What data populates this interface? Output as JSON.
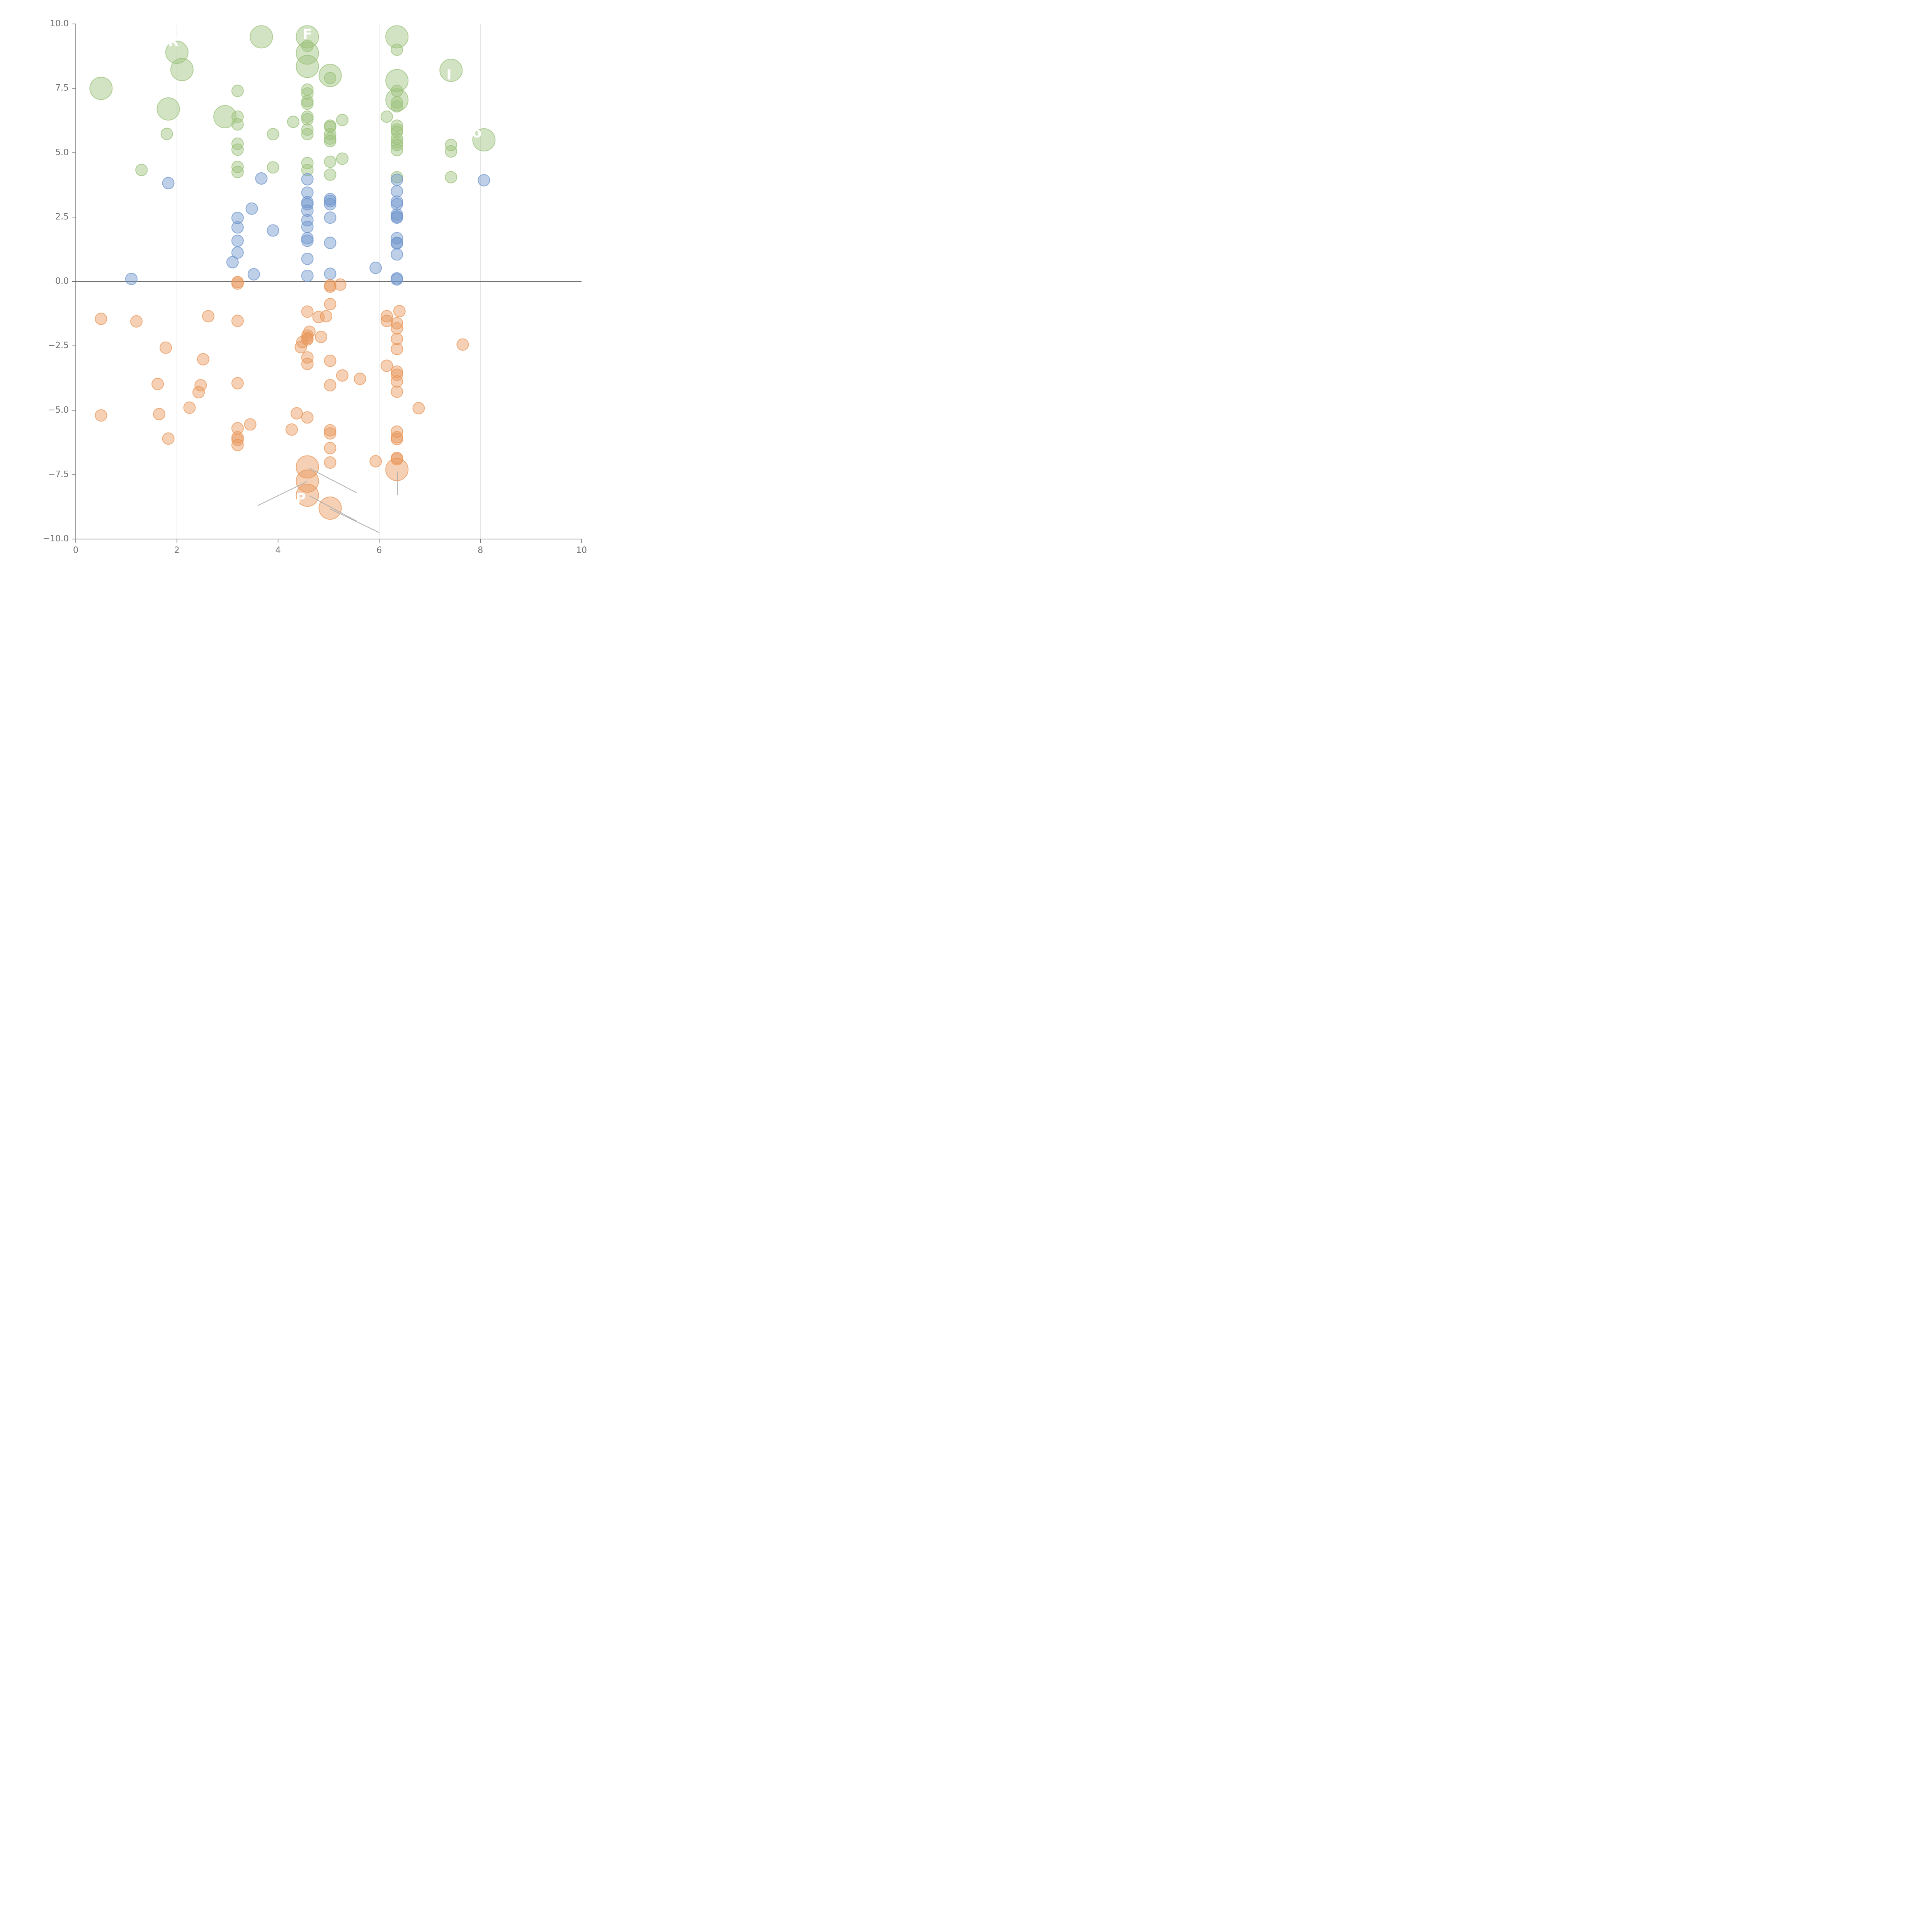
{
  "chart_data": {
    "type": "scatter",
    "title": "",
    "xlabel": "",
    "ylabel": "",
    "xlim": [
      0,
      10
    ],
    "ylim": [
      -10,
      10
    ],
    "grid": {
      "x": true,
      "y": false
    },
    "xticks": [
      "0",
      "2",
      "4",
      "6",
      "8",
      "10"
    ],
    "yticks": [
      "10.0",
      "7.5",
      "5.0",
      "2.5",
      "0.0",
      "−2.5",
      "−5.0",
      "−7.5",
      "−10.0"
    ],
    "xtick_values": [
      0,
      2,
      4,
      6,
      8,
      10
    ],
    "ytick_values": [
      10,
      7.5,
      5,
      2.5,
      0,
      -2.5,
      -5,
      -7.5,
      -10
    ],
    "zero_line": 0,
    "colors": {
      "green": "#9bc27a",
      "blue": "#6f95cc",
      "orange": "#e8975a",
      "axis": "#707070",
      "grid": "#d9d9d9",
      "leader": "#b0b0b0"
    },
    "series": [
      {
        "color": "#9bc27a",
        "points": [
          {
            "x": 0.5,
            "y": 7.5,
            "size": "large"
          },
          {
            "x": 1.3,
            "y": 4.33,
            "size": "small"
          },
          {
            "x": 1.8,
            "y": 5.73,
            "size": "small"
          },
          {
            "x": 1.83,
            "y": 6.7,
            "size": "large"
          },
          {
            "x": 2.0,
            "y": 8.9,
            "size": "large"
          },
          {
            "x": 2.1,
            "y": 8.23,
            "size": "large"
          },
          {
            "x": 2.95,
            "y": 6.4,
            "size": "large"
          },
          {
            "x": 3.2,
            "y": 7.4,
            "size": "small"
          },
          {
            "x": 3.2,
            "y": 6.4,
            "size": "small"
          },
          {
            "x": 3.2,
            "y": 6.1,
            "size": "small"
          },
          {
            "x": 3.2,
            "y": 5.35,
            "size": "small"
          },
          {
            "x": 3.2,
            "y": 5.12,
            "size": "small"
          },
          {
            "x": 3.2,
            "y": 4.45,
            "size": "small"
          },
          {
            "x": 3.2,
            "y": 4.25,
            "size": "small"
          },
          {
            "x": 3.67,
            "y": 9.5,
            "size": "large"
          },
          {
            "x": 3.9,
            "y": 5.72,
            "size": "small"
          },
          {
            "x": 3.9,
            "y": 4.43,
            "size": "small"
          },
          {
            "x": 4.3,
            "y": 6.2,
            "size": "small"
          },
          {
            "x": 4.58,
            "y": 9.5,
            "size": "large"
          },
          {
            "x": 4.58,
            "y": 9.15,
            "size": "small"
          },
          {
            "x": 4.58,
            "y": 8.87,
            "size": "large"
          },
          {
            "x": 4.58,
            "y": 8.35,
            "size": "large"
          },
          {
            "x": 4.58,
            "y": 7.45,
            "size": "small"
          },
          {
            "x": 4.58,
            "y": 7.3,
            "size": "small"
          },
          {
            "x": 4.58,
            "y": 7.0,
            "size": "small"
          },
          {
            "x": 4.58,
            "y": 6.9,
            "size": "small"
          },
          {
            "x": 4.58,
            "y": 6.4,
            "size": "small"
          },
          {
            "x": 4.58,
            "y": 6.3,
            "size": "small"
          },
          {
            "x": 4.58,
            "y": 5.9,
            "size": "small"
          },
          {
            "x": 4.58,
            "y": 5.72,
            "size": "small"
          },
          {
            "x": 4.58,
            "y": 4.6,
            "size": "small"
          },
          {
            "x": 4.58,
            "y": 4.33,
            "size": "small"
          },
          {
            "x": 5.03,
            "y": 8.0,
            "size": "large"
          },
          {
            "x": 5.03,
            "y": 7.9,
            "size": "small"
          },
          {
            "x": 5.03,
            "y": 6.05,
            "size": "small"
          },
          {
            "x": 5.03,
            "y": 6.0,
            "size": "small"
          },
          {
            "x": 5.03,
            "y": 5.72,
            "size": "small"
          },
          {
            "x": 5.03,
            "y": 5.55,
            "size": "small"
          },
          {
            "x": 5.03,
            "y": 5.45,
            "size": "small"
          },
          {
            "x": 5.03,
            "y": 4.65,
            "size": "small"
          },
          {
            "x": 5.03,
            "y": 4.15,
            "size": "small"
          },
          {
            "x": 5.27,
            "y": 6.27,
            "size": "small"
          },
          {
            "x": 5.27,
            "y": 4.77,
            "size": "small"
          },
          {
            "x": 6.15,
            "y": 6.4,
            "size": "small"
          },
          {
            "x": 6.35,
            "y": 9.5,
            "size": "large"
          },
          {
            "x": 6.35,
            "y": 9.0,
            "size": "small"
          },
          {
            "x": 6.35,
            "y": 7.8,
            "size": "large"
          },
          {
            "x": 6.35,
            "y": 7.4,
            "size": "small"
          },
          {
            "x": 6.35,
            "y": 7.05,
            "size": "large"
          },
          {
            "x": 6.35,
            "y": 6.95,
            "size": "small"
          },
          {
            "x": 6.35,
            "y": 6.8,
            "size": "small"
          },
          {
            "x": 6.35,
            "y": 6.05,
            "size": "small"
          },
          {
            "x": 6.35,
            "y": 5.9,
            "size": "small"
          },
          {
            "x": 6.35,
            "y": 5.8,
            "size": "small"
          },
          {
            "x": 6.35,
            "y": 5.55,
            "size": "small"
          },
          {
            "x": 6.35,
            "y": 5.4,
            "size": "small"
          },
          {
            "x": 6.35,
            "y": 5.3,
            "size": "small"
          },
          {
            "x": 6.35,
            "y": 5.1,
            "size": "small"
          },
          {
            "x": 6.35,
            "y": 4.05,
            "size": "small"
          },
          {
            "x": 7.42,
            "y": 8.2,
            "size": "large"
          },
          {
            "x": 7.42,
            "y": 5.3,
            "size": "small"
          },
          {
            "x": 7.42,
            "y": 5.05,
            "size": "small"
          },
          {
            "x": 7.42,
            "y": 4.05,
            "size": "small"
          },
          {
            "x": 8.07,
            "y": 5.5,
            "size": "large"
          }
        ]
      },
      {
        "color": "#6f95cc",
        "points": [
          {
            "x": 1.1,
            "y": 0.1,
            "size": "small"
          },
          {
            "x": 1.83,
            "y": 3.82,
            "size": "small"
          },
          {
            "x": 3.1,
            "y": 0.75,
            "size": "small"
          },
          {
            "x": 3.2,
            "y": 2.47,
            "size": "small"
          },
          {
            "x": 3.2,
            "y": 2.1,
            "size": "small"
          },
          {
            "x": 3.2,
            "y": 1.58,
            "size": "small"
          },
          {
            "x": 3.2,
            "y": 1.12,
            "size": "small"
          },
          {
            "x": 3.48,
            "y": 2.83,
            "size": "small"
          },
          {
            "x": 3.52,
            "y": 0.28,
            "size": "small"
          },
          {
            "x": 3.67,
            "y": 4.0,
            "size": "small"
          },
          {
            "x": 3.9,
            "y": 1.98,
            "size": "small"
          },
          {
            "x": 4.58,
            "y": 3.97,
            "size": "small"
          },
          {
            "x": 4.58,
            "y": 3.45,
            "size": "small"
          },
          {
            "x": 4.58,
            "y": 3.08,
            "size": "small"
          },
          {
            "x": 4.58,
            "y": 3.0,
            "size": "small"
          },
          {
            "x": 4.58,
            "y": 2.75,
            "size": "small"
          },
          {
            "x": 4.58,
            "y": 2.38,
            "size": "small"
          },
          {
            "x": 4.58,
            "y": 2.12,
            "size": "small"
          },
          {
            "x": 4.58,
            "y": 1.68,
            "size": "small"
          },
          {
            "x": 4.58,
            "y": 1.58,
            "size": "small"
          },
          {
            "x": 4.58,
            "y": 0.88,
            "size": "small"
          },
          {
            "x": 4.58,
            "y": 0.22,
            "size": "small"
          },
          {
            "x": 5.03,
            "y": 3.2,
            "size": "small"
          },
          {
            "x": 5.03,
            "y": 3.12,
            "size": "small"
          },
          {
            "x": 5.03,
            "y": 3.0,
            "size": "small"
          },
          {
            "x": 5.03,
            "y": 2.48,
            "size": "small"
          },
          {
            "x": 5.03,
            "y": 1.5,
            "size": "small"
          },
          {
            "x": 5.03,
            "y": 0.3,
            "size": "small"
          },
          {
            "x": 5.93,
            "y": 0.53,
            "size": "small"
          },
          {
            "x": 6.35,
            "y": 3.95,
            "size": "small"
          },
          {
            "x": 6.35,
            "y": 3.5,
            "size": "small"
          },
          {
            "x": 6.35,
            "y": 3.1,
            "size": "small"
          },
          {
            "x": 6.35,
            "y": 3.0,
            "size": "small"
          },
          {
            "x": 6.35,
            "y": 2.6,
            "size": "small"
          },
          {
            "x": 6.35,
            "y": 2.52,
            "size": "small"
          },
          {
            "x": 6.35,
            "y": 2.48,
            "size": "small"
          },
          {
            "x": 6.35,
            "y": 1.68,
            "size": "small"
          },
          {
            "x": 6.35,
            "y": 1.5,
            "size": "small"
          },
          {
            "x": 6.35,
            "y": 1.48,
            "size": "small"
          },
          {
            "x": 6.35,
            "y": 1.05,
            "size": "small"
          },
          {
            "x": 6.35,
            "y": 0.12,
            "size": "small"
          },
          {
            "x": 6.35,
            "y": 0.08,
            "size": "small"
          },
          {
            "x": 8.07,
            "y": 3.93,
            "size": "small"
          }
        ]
      },
      {
        "color": "#e8975a",
        "points": [
          {
            "x": 0.5,
            "y": -1.45,
            "size": "small"
          },
          {
            "x": 0.5,
            "y": -5.2,
            "size": "small"
          },
          {
            "x": 1.2,
            "y": -1.55,
            "size": "small"
          },
          {
            "x": 1.62,
            "y": -3.98,
            "size": "small"
          },
          {
            "x": 1.65,
            "y": -5.15,
            "size": "small"
          },
          {
            "x": 1.78,
            "y": -2.57,
            "size": "small"
          },
          {
            "x": 1.83,
            "y": -6.1,
            "size": "small"
          },
          {
            "x": 2.25,
            "y": -4.9,
            "size": "small"
          },
          {
            "x": 2.43,
            "y": -4.3,
            "size": "small"
          },
          {
            "x": 2.47,
            "y": -4.03,
            "size": "small"
          },
          {
            "x": 2.52,
            "y": -3.02,
            "size": "small"
          },
          {
            "x": 2.62,
            "y": -1.35,
            "size": "small"
          },
          {
            "x": 3.2,
            "y": -0.02,
            "size": "small"
          },
          {
            "x": 3.2,
            "y": -0.08,
            "size": "small"
          },
          {
            "x": 3.2,
            "y": -1.53,
            "size": "small"
          },
          {
            "x": 3.2,
            "y": -3.95,
            "size": "small"
          },
          {
            "x": 3.2,
            "y": -5.7,
            "size": "small"
          },
          {
            "x": 3.2,
            "y": -6.05,
            "size": "small"
          },
          {
            "x": 3.2,
            "y": -6.15,
            "size": "small"
          },
          {
            "x": 3.2,
            "y": -6.35,
            "size": "small"
          },
          {
            "x": 3.45,
            "y": -5.55,
            "size": "small"
          },
          {
            "x": 4.27,
            "y": -5.75,
            "size": "small"
          },
          {
            "x": 4.37,
            "y": -5.12,
            "size": "small"
          },
          {
            "x": 4.45,
            "y": -2.55,
            "size": "small"
          },
          {
            "x": 4.48,
            "y": -2.35,
            "size": "small"
          },
          {
            "x": 4.58,
            "y": -1.17,
            "size": "small"
          },
          {
            "x": 4.58,
            "y": -2.1,
            "size": "small"
          },
          {
            "x": 4.58,
            "y": -2.2,
            "size": "small"
          },
          {
            "x": 4.58,
            "y": -2.25,
            "size": "small"
          },
          {
            "x": 4.58,
            "y": -2.95,
            "size": "small"
          },
          {
            "x": 4.58,
            "y": -3.2,
            "size": "small"
          },
          {
            "x": 4.58,
            "y": -5.28,
            "size": "small"
          },
          {
            "x": 4.58,
            "y": -7.2,
            "size": "large"
          },
          {
            "x": 4.58,
            "y": -7.75,
            "size": "large"
          },
          {
            "x": 4.58,
            "y": -8.3,
            "size": "large"
          },
          {
            "x": 4.62,
            "y": -1.95,
            "size": "small"
          },
          {
            "x": 4.8,
            "y": -1.38,
            "size": "small"
          },
          {
            "x": 4.85,
            "y": -2.15,
            "size": "small"
          },
          {
            "x": 4.95,
            "y": -1.35,
            "size": "small"
          },
          {
            "x": 5.03,
            "y": -0.15,
            "size": "small"
          },
          {
            "x": 5.03,
            "y": -0.2,
            "size": "small"
          },
          {
            "x": 5.03,
            "y": -0.88,
            "size": "small"
          },
          {
            "x": 5.03,
            "y": -3.08,
            "size": "small"
          },
          {
            "x": 5.03,
            "y": -4.03,
            "size": "small"
          },
          {
            "x": 5.03,
            "y": -5.78,
            "size": "small"
          },
          {
            "x": 5.03,
            "y": -5.9,
            "size": "small"
          },
          {
            "x": 5.03,
            "y": -6.47,
            "size": "small"
          },
          {
            "x": 5.03,
            "y": -7.03,
            "size": "small"
          },
          {
            "x": 5.03,
            "y": -8.8,
            "size": "large"
          },
          {
            "x": 5.23,
            "y": -0.12,
            "size": "small"
          },
          {
            "x": 5.27,
            "y": -3.65,
            "size": "small"
          },
          {
            "x": 5.62,
            "y": -3.78,
            "size": "small"
          },
          {
            "x": 5.93,
            "y": -6.98,
            "size": "small"
          },
          {
            "x": 6.15,
            "y": -1.35,
            "size": "small"
          },
          {
            "x": 6.15,
            "y": -1.53,
            "size": "small"
          },
          {
            "x": 6.15,
            "y": -3.27,
            "size": "small"
          },
          {
            "x": 6.35,
            "y": -1.62,
            "size": "small"
          },
          {
            "x": 6.35,
            "y": -1.82,
            "size": "small"
          },
          {
            "x": 6.35,
            "y": -2.23,
            "size": "small"
          },
          {
            "x": 6.35,
            "y": -2.62,
            "size": "small"
          },
          {
            "x": 6.35,
            "y": -3.5,
            "size": "small"
          },
          {
            "x": 6.35,
            "y": -3.62,
            "size": "small"
          },
          {
            "x": 6.35,
            "y": -3.88,
            "size": "small"
          },
          {
            "x": 6.35,
            "y": -4.28,
            "size": "small"
          },
          {
            "x": 6.35,
            "y": -5.83,
            "size": "small"
          },
          {
            "x": 6.35,
            "y": -6.05,
            "size": "small"
          },
          {
            "x": 6.35,
            "y": -6.12,
            "size": "small"
          },
          {
            "x": 6.35,
            "y": -6.85,
            "size": "small"
          },
          {
            "x": 6.35,
            "y": -6.9,
            "size": "small"
          },
          {
            "x": 6.35,
            "y": -7.3,
            "size": "large"
          },
          {
            "x": 6.4,
            "y": -1.15,
            "size": "small"
          },
          {
            "x": 6.78,
            "y": -4.92,
            "size": "small"
          },
          {
            "x": 7.65,
            "y": -2.45,
            "size": "small"
          }
        ]
      }
    ],
    "annotations": [
      {
        "text": "R",
        "x": 1.93,
        "y": 9.28
      },
      {
        "text": "F",
        "x": 4.58,
        "y": 9.57
      },
      {
        "text": "I",
        "x": 7.38,
        "y": 8.0
      },
      {
        "text": "o",
        "x": 7.93,
        "y": 5.75
      },
      {
        "text": "P",
        "x": 4.45,
        "y": -8.45
      }
    ],
    "leader_lines": [
      {
        "x1": 4.62,
        "y1": -7.25,
        "x2": 5.55,
        "y2": -8.2
      },
      {
        "x1": 4.57,
        "y1": -7.77,
        "x2": 3.6,
        "y2": -8.7
      },
      {
        "x1": 4.62,
        "y1": -8.32,
        "x2": 5.55,
        "y2": -9.3
      },
      {
        "x1": 5.03,
        "y1": -8.83,
        "x2": 6.0,
        "y2": -9.75
      },
      {
        "x1": 6.36,
        "y1": -7.38,
        "x2": 6.36,
        "y2": -8.3
      }
    ]
  }
}
